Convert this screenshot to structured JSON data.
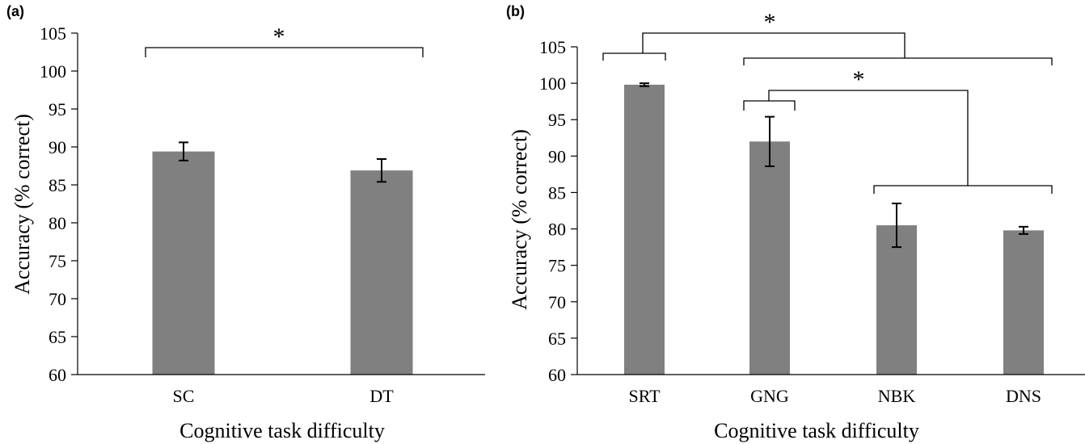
{
  "colors": {
    "bar": "#808080",
    "axis": "#000000"
  },
  "chart_data": [
    {
      "type": "bar",
      "panel_label": "(a)",
      "categories": [
        "SC",
        "DT"
      ],
      "values": [
        89.4,
        86.9
      ],
      "error": [
        1.2,
        1.5
      ],
      "xlabel": "Cognitive task difficulty",
      "ylabel": "Accuracy  (% correct)",
      "ylim": [
        60,
        105
      ],
      "yticks": [
        60,
        65,
        70,
        75,
        80,
        85,
        90,
        95,
        100,
        105
      ],
      "grid": false,
      "significance": [
        {
          "between": [
            "SC",
            "DT"
          ],
          "label": "*"
        }
      ]
    },
    {
      "type": "bar",
      "panel_label": "(b)",
      "categories": [
        "SRT",
        "GNG",
        "NBK",
        "DNS"
      ],
      "values": [
        99.8,
        92.0,
        80.5,
        79.8
      ],
      "error": [
        0.2,
        3.4,
        3.0,
        0.5
      ],
      "xlabel": "Cognitive task difficulty",
      "ylabel": "Accuracy  (% correct)",
      "ylim": [
        60,
        105
      ],
      "yticks": [
        60,
        65,
        70,
        75,
        80,
        85,
        90,
        95,
        100,
        105
      ],
      "grid": false,
      "significance": [
        {
          "between": [
            "SRT",
            "GNG–DNS"
          ],
          "label": "*"
        },
        {
          "between": [
            "GNG",
            "NBK–DNS"
          ],
          "label": "*"
        }
      ]
    }
  ]
}
